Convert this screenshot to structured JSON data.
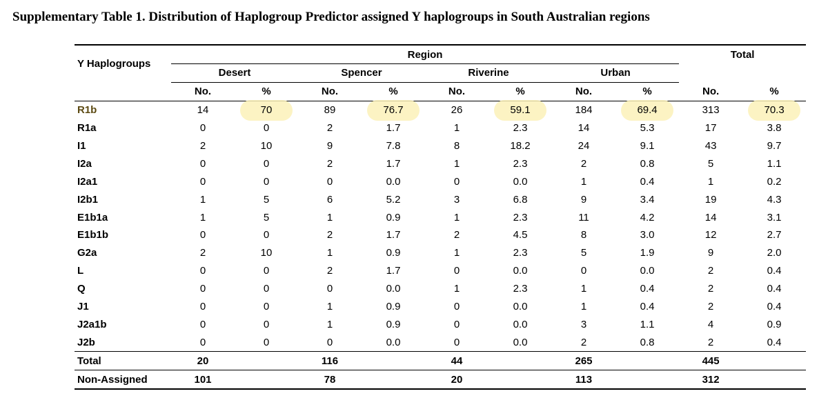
{
  "title": "Supplementary Table 1. Distribution of Haplogroup Predictor assigned Y haplogroups in South Australian regions",
  "header": {
    "row_label": "Y Haplogroups",
    "region_label": "Region",
    "total_label": "Total",
    "regions": [
      "Desert",
      "Spencer",
      "Riverine",
      "Urban"
    ],
    "no_label": "No.",
    "pct_label": "%"
  },
  "rows": [
    {
      "label": "R1b",
      "cells": [
        "14",
        "70",
        "89",
        "76.7",
        "26",
        "59.1",
        "184",
        "69.4",
        "313",
        "70.3"
      ]
    },
    {
      "label": "R1a",
      "cells": [
        "0",
        "0",
        "2",
        "1.7",
        "1",
        "2.3",
        "14",
        "5.3",
        "17",
        "3.8"
      ]
    },
    {
      "label": "I1",
      "cells": [
        "2",
        "10",
        "9",
        "7.8",
        "8",
        "18.2",
        "24",
        "9.1",
        "43",
        "9.7"
      ]
    },
    {
      "label": "I2a",
      "cells": [
        "0",
        "0",
        "2",
        "1.7",
        "1",
        "2.3",
        "2",
        "0.8",
        "5",
        "1.1"
      ]
    },
    {
      "label": "I2a1",
      "cells": [
        "0",
        "0",
        "0",
        "0.0",
        "0",
        "0.0",
        "1",
        "0.4",
        "1",
        "0.2"
      ]
    },
    {
      "label": "I2b1",
      "cells": [
        "1",
        "5",
        "6",
        "5.2",
        "3",
        "6.8",
        "9",
        "3.4",
        "19",
        "4.3"
      ]
    },
    {
      "label": "E1b1a",
      "cells": [
        "1",
        "5",
        "1",
        "0.9",
        "1",
        "2.3",
        "11",
        "4.2",
        "14",
        "3.1"
      ]
    },
    {
      "label": "E1b1b",
      "cells": [
        "0",
        "0",
        "2",
        "1.7",
        "2",
        "4.5",
        "8",
        "3.0",
        "12",
        "2.7"
      ]
    },
    {
      "label": "G2a",
      "cells": [
        "2",
        "10",
        "1",
        "0.9",
        "1",
        "2.3",
        "5",
        "1.9",
        "9",
        "2.0"
      ]
    },
    {
      "label": "L",
      "cells": [
        "0",
        "0",
        "2",
        "1.7",
        "0",
        "0.0",
        "0",
        "0.0",
        "2",
        "0.4"
      ]
    },
    {
      "label": "Q",
      "cells": [
        "0",
        "0",
        "0",
        "0.0",
        "1",
        "2.3",
        "1",
        "0.4",
        "2",
        "0.4"
      ]
    },
    {
      "label": "J1",
      "cells": [
        "0",
        "0",
        "1",
        "0.9",
        "0",
        "0.0",
        "1",
        "0.4",
        "2",
        "0.4"
      ]
    },
    {
      "label": "J2a1b",
      "cells": [
        "0",
        "0",
        "1",
        "0.9",
        "0",
        "0.0",
        "3",
        "1.1",
        "4",
        "0.9"
      ]
    },
    {
      "label": "J2b",
      "cells": [
        "0",
        "0",
        "0",
        "0.0",
        "0",
        "0.0",
        "2",
        "0.8",
        "2",
        "0.4"
      ]
    }
  ],
  "total_row": {
    "label": "Total",
    "cells": [
      "20",
      "",
      "116",
      "",
      "44",
      "",
      "265",
      "",
      "445",
      ""
    ]
  },
  "nonassigned_row": {
    "label": "Non-Assigned",
    "cells": [
      "101",
      "",
      "78",
      "",
      "20",
      "",
      "113",
      "",
      "312",
      ""
    ]
  },
  "highlight": {
    "row": "R1b",
    "color": "#fbf1b8"
  }
}
